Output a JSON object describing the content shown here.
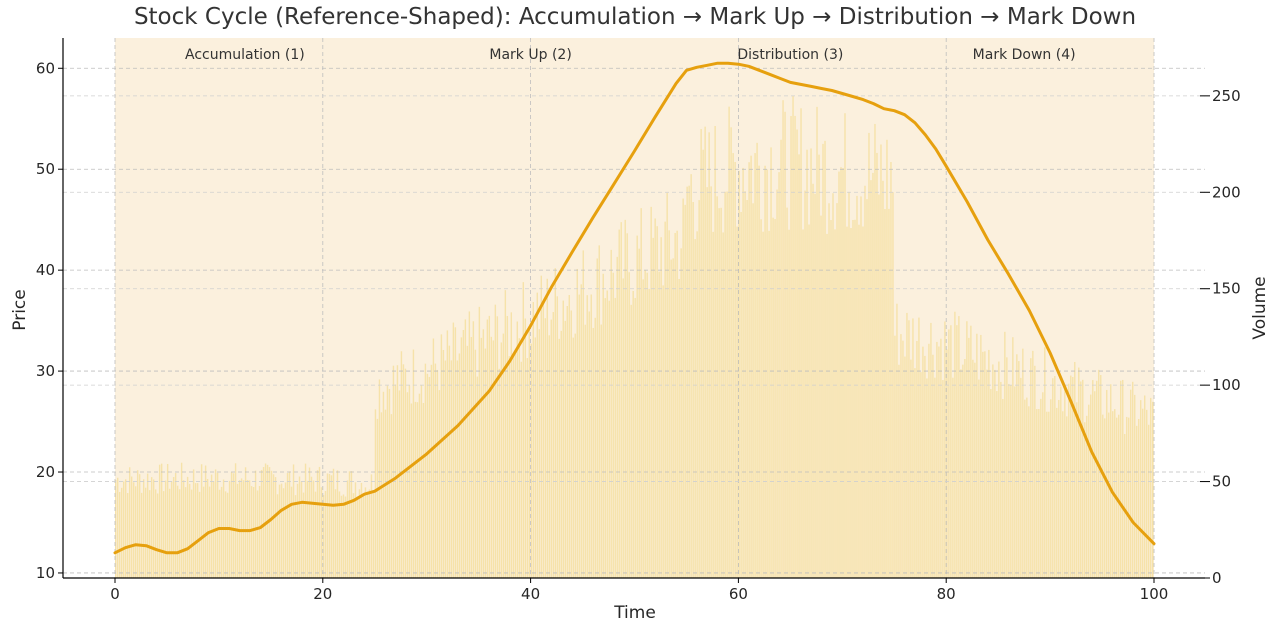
{
  "chart_data": {
    "type": "line",
    "title": "Stock Cycle (Reference-Shaped): Accumulation → Mark Up → Distribution → Mark Down",
    "xlabel": "Time",
    "ylabel": "Price",
    "y2label": "Volume",
    "xlim": [
      0,
      100
    ],
    "ylim": [
      9.5,
      63
    ],
    "y2lim": [
      0,
      280
    ],
    "x_ticks": [
      0,
      20,
      40,
      60,
      80,
      100
    ],
    "y_ticks": [
      10,
      20,
      30,
      40,
      50,
      60
    ],
    "y2_ticks": [
      0,
      50,
      100,
      150,
      200,
      250
    ],
    "grid": true,
    "phases": [
      {
        "label": "Accumulation (1)",
        "start": 0,
        "end": 25
      },
      {
        "label": "Mark Up (2)",
        "start": 25,
        "end": 55
      },
      {
        "label": "Distribution (3)",
        "start": 55,
        "end": 75
      },
      {
        "label": "Mark Down (4)",
        "start": 75,
        "end": 100
      }
    ],
    "series": [
      {
        "name": "Price",
        "axis": "left",
        "color": "#e6a00e",
        "x": [
          0,
          1,
          2,
          3,
          4,
          5,
          6,
          7,
          8,
          9,
          10,
          11,
          12,
          13,
          14,
          15,
          16,
          17,
          18,
          19,
          20,
          21,
          22,
          23,
          24,
          25,
          27,
          30,
          33,
          36,
          38,
          40,
          42,
          44,
          46,
          48,
          50,
          52,
          54,
          55,
          56,
          57,
          58,
          59,
          60,
          61,
          62,
          63,
          64,
          65,
          66,
          67,
          68,
          69,
          70,
          71,
          72,
          73,
          74,
          75,
          76,
          77,
          78,
          79,
          80,
          82,
          84,
          86,
          88,
          90,
          92,
          94,
          96,
          98,
          100
        ],
        "y": [
          12,
          12.5,
          12.8,
          12.7,
          12.3,
          12,
          12,
          12.4,
          13.2,
          14,
          14.4,
          14.4,
          14.2,
          14.2,
          14.5,
          15.3,
          16.2,
          16.8,
          17,
          16.9,
          16.8,
          16.7,
          16.8,
          17.2,
          17.8,
          18.1,
          19.4,
          21.8,
          24.6,
          28,
          31,
          34.5,
          38.3,
          41.8,
          45.2,
          48.5,
          51.8,
          55.2,
          58.5,
          59.8,
          60.1,
          60.3,
          60.5,
          60.5,
          60.4,
          60.2,
          59.8,
          59.4,
          59,
          58.6,
          58.4,
          58.2,
          58,
          57.8,
          57.5,
          57.2,
          56.9,
          56.5,
          56,
          55.8,
          55.4,
          54.6,
          53.4,
          52,
          50.3,
          46.8,
          43,
          39.6,
          36,
          31.8,
          27,
          22,
          18,
          15,
          12.9
        ]
      },
      {
        "name": "Volume",
        "axis": "right",
        "color": "#f5dfa0",
        "x": [
          0,
          10,
          20,
          24.9,
          25,
          30,
          40,
          50,
          54.9,
          55,
          60,
          65,
          70,
          74.9,
          75,
          80,
          90,
          100
        ],
        "y": [
          52,
          53,
          52,
          50,
          100,
          110,
          138,
          168,
          182,
          205,
          218,
          220,
          215,
          212,
          130,
          124,
          104,
          86
        ]
      }
    ]
  }
}
